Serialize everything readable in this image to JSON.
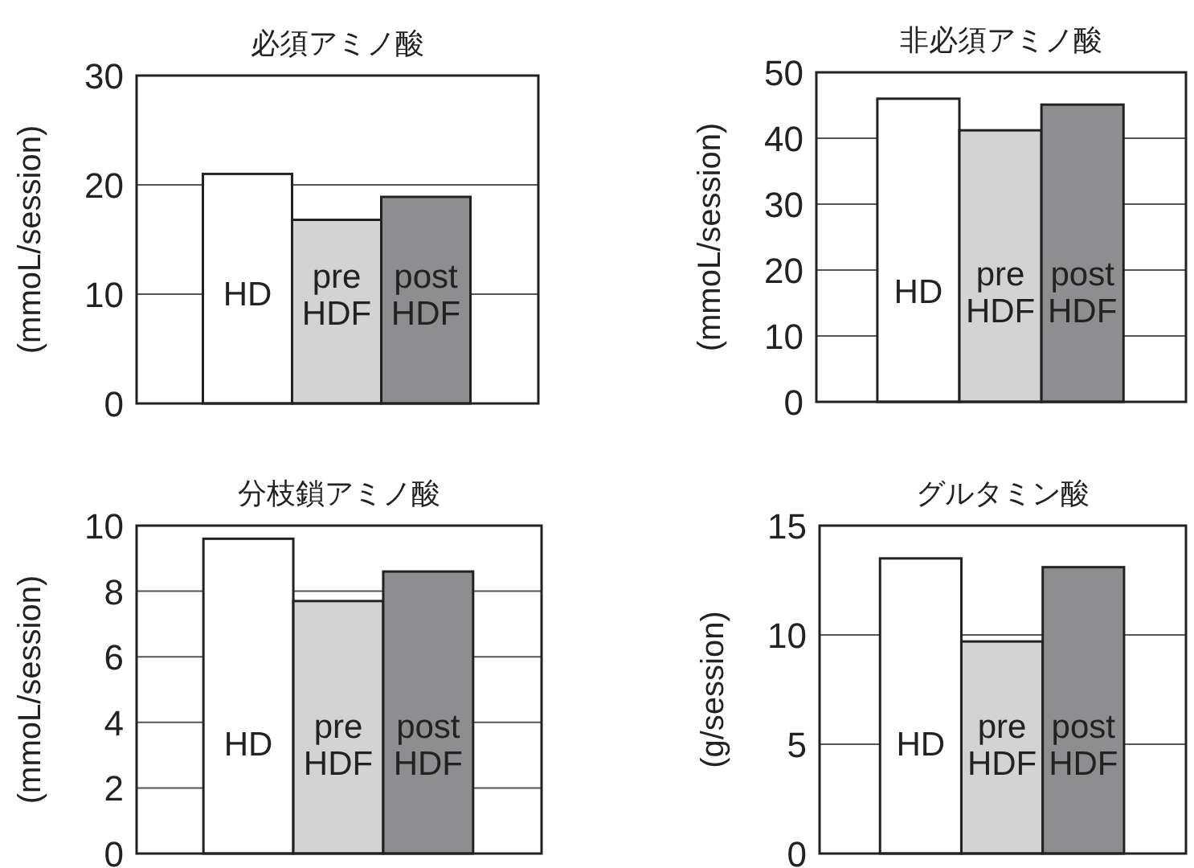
{
  "chart_data": [
    {
      "type": "bar",
      "title": "必須アミノ酸",
      "ylabel": "(mmoL/session)",
      "categories": [
        "HD",
        "pre HDF",
        "post HDF"
      ],
      "values": [
        21,
        16.8,
        18.9
      ],
      "colors": [
        "#ffffff",
        "#d3d3d3",
        "#8e8e90"
      ],
      "ylim": [
        0,
        30
      ],
      "yticks": [
        0,
        10,
        20,
        30
      ],
      "grid": "y"
    },
    {
      "type": "bar",
      "title": "非必須アミノ酸",
      "ylabel": "(mmoL/session)",
      "categories": [
        "HD",
        "pre HDF",
        "post HDF"
      ],
      "values": [
        46,
        41.2,
        45.1
      ],
      "colors": [
        "#ffffff",
        "#d3d3d3",
        "#8e8e90"
      ],
      "ylim": [
        0,
        50
      ],
      "yticks": [
        0,
        10,
        20,
        30,
        40,
        50
      ],
      "grid": "y"
    },
    {
      "type": "bar",
      "title": "分枝鎖アミノ酸",
      "ylabel": "(mmoL/session)",
      "categories": [
        "HD",
        "pre HDF",
        "post HDF"
      ],
      "values": [
        9.6,
        7.7,
        8.6
      ],
      "colors": [
        "#ffffff",
        "#d3d3d3",
        "#8e8e90"
      ],
      "ylim": [
        0,
        10
      ],
      "yticks": [
        0,
        2,
        4,
        6,
        8,
        10
      ],
      "grid": "y"
    },
    {
      "type": "bar",
      "title": "グルタミン酸",
      "ylabel": "(g/session)",
      "categories": [
        "HD",
        "pre HDF",
        "post HDF"
      ],
      "values": [
        13.5,
        9.7,
        13.1
      ],
      "colors": [
        "#ffffff",
        "#d3d3d3",
        "#8e8e90"
      ],
      "ylim": [
        0,
        15
      ],
      "yticks": [
        0,
        5,
        10,
        15
      ],
      "grid": "y"
    }
  ]
}
